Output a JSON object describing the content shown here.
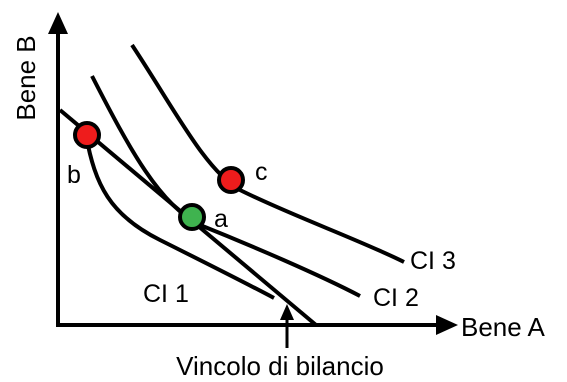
{
  "axes": {
    "y_label": "Bene B",
    "x_label": "Bene A"
  },
  "curves": [
    {
      "label": "CI 1"
    },
    {
      "label": "CI 2"
    },
    {
      "label": "CI 3"
    }
  ],
  "budget": {
    "label": "Vincolo di bilancio"
  },
  "points": [
    {
      "label": "a",
      "color": "#3fb34f"
    },
    {
      "label": "b",
      "color": "#ee1c1c"
    },
    {
      "label": "c",
      "color": "#ee1c1c"
    }
  ],
  "colors": {
    "line": "#000000",
    "point_outline": "#000000"
  }
}
